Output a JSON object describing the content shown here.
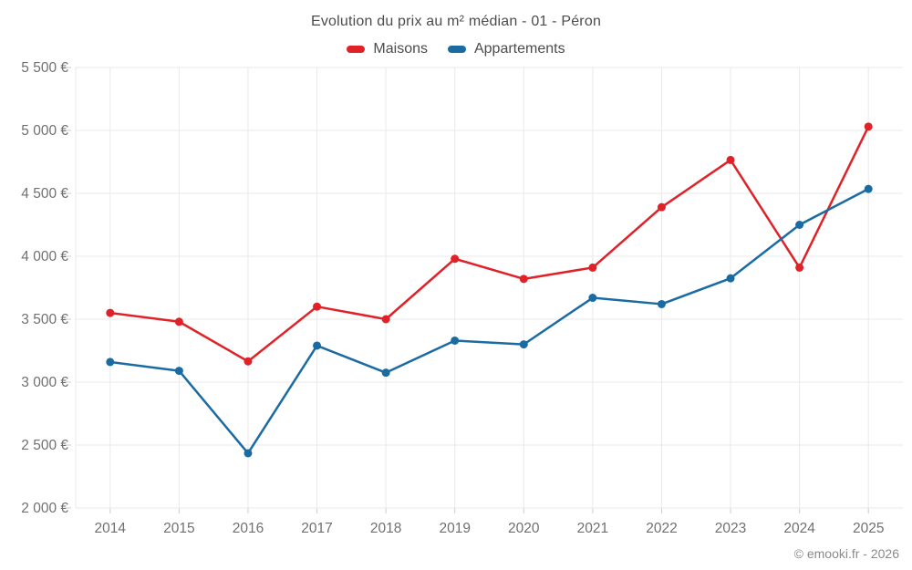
{
  "page": {
    "background": "#ffffff"
  },
  "header": {
    "title": "Evolution du prix au m² médian - 01 - Péron"
  },
  "legend": {
    "items": [
      {
        "label": "Maisons",
        "color": "#e02228"
      },
      {
        "label": "Appartements",
        "color": "#1b6ba3"
      }
    ]
  },
  "footer": {
    "credit": "© emooki.fr - 2026"
  },
  "chart_data": {
    "type": "line",
    "title": "Evolution du prix au m² médian - 01 - Péron",
    "categories": [
      "2014",
      "2015",
      "2016",
      "2017",
      "2018",
      "2019",
      "2020",
      "2021",
      "2022",
      "2023",
      "2024",
      "2025"
    ],
    "series": [
      {
        "name": "Maisons",
        "color": "#e02228",
        "values": [
          3550,
          3480,
          3165,
          3600,
          3500,
          3980,
          3820,
          3910,
          4390,
          4765,
          3910,
          5030
        ]
      },
      {
        "name": "Appartements",
        "color": "#1b6ba3",
        "values": [
          3160,
          3090,
          2435,
          3290,
          3075,
          3330,
          3300,
          3670,
          3620,
          3825,
          4250,
          4535
        ]
      }
    ],
    "xlabel": "",
    "ylabel": "",
    "ylim": [
      2000,
      5500
    ],
    "ytick_step": 500,
    "ytick_labels": [
      "2 000 €",
      "2 500 €",
      "3 000 €",
      "3 500 €",
      "4 000 €",
      "4 500 €",
      "5 000 €",
      "5 500 €"
    ],
    "grid": true,
    "legend_position": "top",
    "grid_color": "#e9e9e9",
    "tick_color": "#cccccc",
    "axis_label_color": "#707070"
  }
}
